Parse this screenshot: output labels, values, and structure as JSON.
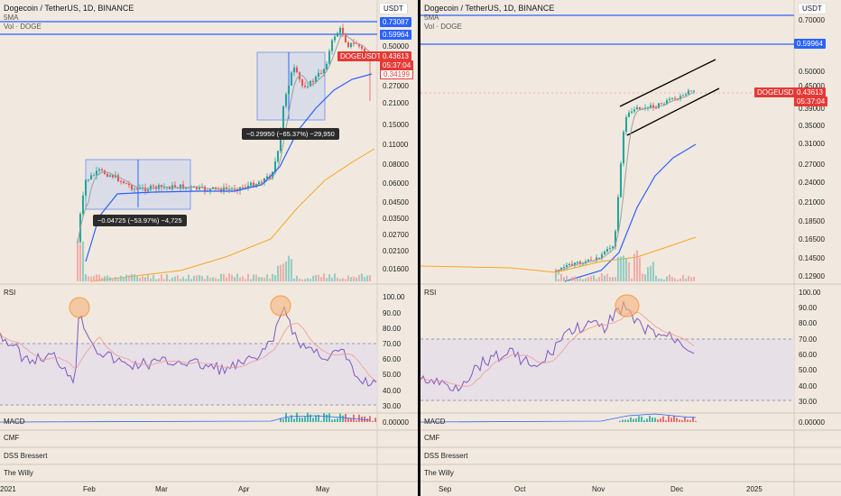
{
  "left": {
    "title": "Dogecoin / TetherUS, 1D, BINANCE",
    "ma_label": "5MA",
    "vol_label": "Vol · DOGE",
    "currency": "USDT",
    "price_ticks": [
      "0.50000",
      "0.27000",
      "0.21000",
      "0.15000",
      "0.11000",
      "0.08000",
      "0.06000",
      "0.04500",
      "0.03500",
      "0.02700",
      "0.02100",
      "0.01600"
    ],
    "level_badges": [
      "0.73087",
      "0.59964"
    ],
    "symbol_badge": "DOGEUSDT",
    "last_price": "0.43613",
    "countdown": "05:37:04",
    "secondary_price": "0.34199",
    "measure_1": "−0.29950 (−65.37%) −29,950",
    "measure_2": "−0.04725 (−53.97%) −4,725",
    "rsi_label": "RSI",
    "rsi_ticks": [
      "100.00",
      "90.00",
      "80.00",
      "70.00",
      "60.00",
      "50.00",
      "40.00",
      "30.00"
    ],
    "macd_label": "MACD",
    "macd_tick": "0.00000",
    "cmf_label": "CMF",
    "dss_label": "DSS Bressert",
    "willy_label": "The Willy",
    "time_labels": [
      "2021",
      "Feb",
      "Mar",
      "Apr",
      "May"
    ]
  },
  "right": {
    "title": "Dogecoin / TetherUS, 1D, BINANCE",
    "ma_label": "5MA",
    "vol_label": "Vol · DOGE",
    "currency": "USDT",
    "price_ticks": [
      "0.70000",
      "0.50000",
      "0.45000",
      "0.39000",
      "0.35000",
      "0.31000",
      "0.27000",
      "0.24000",
      "0.21000",
      "0.18500",
      "0.16500",
      "0.14500",
      "0.12900"
    ],
    "level_badge": "0.59964",
    "symbol_badge": "DOGEUSDT",
    "last_price": "0.43613",
    "countdown": "05:37:04",
    "rsi_label": "RSI",
    "rsi_ticks": [
      "100.00",
      "90.00",
      "80.00",
      "70.00",
      "60.00",
      "50.00",
      "40.00",
      "30.00"
    ],
    "macd_label": "MACD",
    "macd_tick": "0.00000",
    "cmf_label": "CMF",
    "dss_label": "DSS Bressert",
    "willy_label": "The Willy",
    "time_labels": [
      "Sep",
      "Oct",
      "Nov",
      "Dec",
      "2025"
    ]
  },
  "colors": {
    "background": "#f1e9df",
    "up": "#26a69a",
    "down": "#ef5350",
    "ma_fast": "#9e9e9e",
    "ma_mid": "#2962ff",
    "ma_slow": "#f5a623",
    "rsi": "#7e57c2",
    "level_line": "#2962ff",
    "highlight": "#f57c00"
  }
}
